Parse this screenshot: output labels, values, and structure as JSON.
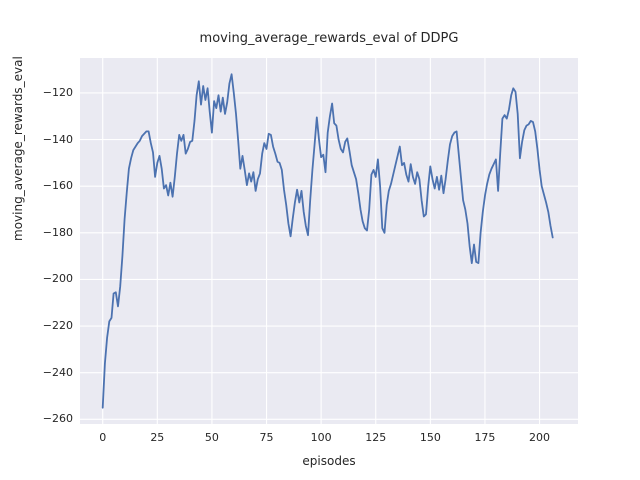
{
  "chart_data": {
    "type": "line",
    "title": "moving_average_rewards_eval of DDPG",
    "xlabel": "episodes",
    "ylabel": "moving_average_rewards_eval",
    "xlim": [
      -10.4,
      217.6
    ],
    "ylim": [
      -262,
      -105
    ],
    "grid": true,
    "legend": "none",
    "plot_bg_color": "#eaeaf2",
    "grid_color": "#ffffff",
    "line_color": "#4c72b0",
    "text_color": "#262626",
    "xticks": [
      {
        "label": "0",
        "value": 0
      },
      {
        "label": "25",
        "value": 25
      },
      {
        "label": "50",
        "value": 50
      },
      {
        "label": "75",
        "value": 75
      },
      {
        "label": "100",
        "value": 100
      },
      {
        "label": "125",
        "value": 125
      },
      {
        "label": "150",
        "value": 150
      },
      {
        "label": "175",
        "value": 175
      },
      {
        "label": "200",
        "value": 200
      }
    ],
    "yticks": [
      {
        "label": "−120",
        "value": -120
      },
      {
        "label": "−140",
        "value": -140
      },
      {
        "label": "−160",
        "value": -160
      },
      {
        "label": "−180",
        "value": -180
      },
      {
        "label": "−200",
        "value": -200
      },
      {
        "label": "−220",
        "value": -220
      },
      {
        "label": "−240",
        "value": -240
      },
      {
        "label": "−260",
        "value": -260
      }
    ],
    "series": [
      {
        "name": "moving_average_rewards_eval",
        "points": [
          [
            0,
            -255
          ],
          [
            1,
            -236
          ],
          [
            2,
            -225
          ],
          [
            3,
            -218
          ],
          [
            4,
            -216.5
          ],
          [
            5,
            -206
          ],
          [
            6,
            -205.5
          ],
          [
            7,
            -211.5
          ],
          [
            8,
            -203
          ],
          [
            9,
            -190
          ],
          [
            10,
            -174
          ],
          [
            11,
            -163
          ],
          [
            12,
            -152.5
          ],
          [
            13,
            -148
          ],
          [
            14,
            -144.5
          ],
          [
            15,
            -143
          ],
          [
            16,
            -141.5
          ],
          [
            17,
            -140.5
          ],
          [
            18,
            -138.5
          ],
          [
            19,
            -137.5
          ],
          [
            20,
            -136.5
          ],
          [
            21,
            -136.5
          ],
          [
            22,
            -141.5
          ],
          [
            23,
            -145.5
          ],
          [
            24,
            -156
          ],
          [
            25,
            -150
          ],
          [
            26,
            -147
          ],
          [
            27,
            -152.5
          ],
          [
            28,
            -161
          ],
          [
            29,
            -159.5
          ],
          [
            30,
            -164
          ],
          [
            31,
            -158.5
          ],
          [
            32,
            -164.5
          ],
          [
            33,
            -156
          ],
          [
            34,
            -146
          ],
          [
            35,
            -138
          ],
          [
            36,
            -140.5
          ],
          [
            37,
            -138
          ],
          [
            38,
            -146
          ],
          [
            39,
            -144
          ],
          [
            40,
            -141
          ],
          [
            41,
            -140.5
          ],
          [
            42,
            -132
          ],
          [
            43,
            -121
          ],
          [
            44,
            -115
          ],
          [
            45,
            -125
          ],
          [
            46,
            -117
          ],
          [
            47,
            -123
          ],
          [
            48,
            -118
          ],
          [
            49,
            -128
          ],
          [
            50,
            -137
          ],
          [
            51,
            -123.5
          ],
          [
            52,
            -126.5
          ],
          [
            53,
            -121
          ],
          [
            54,
            -128
          ],
          [
            55,
            -122
          ],
          [
            56,
            -129
          ],
          [
            57,
            -124
          ],
          [
            58,
            -116
          ],
          [
            59,
            -112
          ],
          [
            60,
            -120
          ],
          [
            61,
            -129
          ],
          [
            62,
            -140
          ],
          [
            63,
            -152.5
          ],
          [
            64,
            -147
          ],
          [
            65,
            -153
          ],
          [
            66,
            -159.5
          ],
          [
            67,
            -154.5
          ],
          [
            68,
            -158
          ],
          [
            69,
            -154
          ],
          [
            70,
            -162
          ],
          [
            71,
            -157
          ],
          [
            72,
            -154.5
          ],
          [
            73,
            -146
          ],
          [
            74,
            -141.5
          ],
          [
            75,
            -144
          ],
          [
            76,
            -137.5
          ],
          [
            77,
            -138
          ],
          [
            78,
            -143
          ],
          [
            79,
            -146
          ],
          [
            80,
            -149.5
          ],
          [
            81,
            -150
          ],
          [
            82,
            -153
          ],
          [
            83,
            -161.5
          ],
          [
            84,
            -168
          ],
          [
            85,
            -176
          ],
          [
            86,
            -181.5
          ],
          [
            87,
            -174
          ],
          [
            88,
            -167
          ],
          [
            89,
            -161.5
          ],
          [
            90,
            -167
          ],
          [
            91,
            -162
          ],
          [
            92,
            -171
          ],
          [
            93,
            -177
          ],
          [
            94,
            -181
          ],
          [
            95,
            -166
          ],
          [
            96,
            -153
          ],
          [
            97,
            -142
          ],
          [
            98,
            -130.5
          ],
          [
            99,
            -140
          ],
          [
            100,
            -147.5
          ],
          [
            101,
            -146.5
          ],
          [
            102,
            -154
          ],
          [
            103,
            -137
          ],
          [
            104,
            -130
          ],
          [
            105,
            -124.5
          ],
          [
            106,
            -133
          ],
          [
            107,
            -134
          ],
          [
            108,
            -140
          ],
          [
            109,
            -144
          ],
          [
            110,
            -145.5
          ],
          [
            111,
            -141
          ],
          [
            112,
            -139.5
          ],
          [
            113,
            -145
          ],
          [
            114,
            -151
          ],
          [
            115,
            -154
          ],
          [
            116,
            -157
          ],
          [
            117,
            -163
          ],
          [
            118,
            -170
          ],
          [
            119,
            -175
          ],
          [
            120,
            -178
          ],
          [
            121,
            -179
          ],
          [
            122,
            -170
          ],
          [
            123,
            -155
          ],
          [
            124,
            -153
          ],
          [
            125,
            -156
          ],
          [
            126,
            -148.5
          ],
          [
            127,
            -160
          ],
          [
            128,
            -178
          ],
          [
            129,
            -180
          ],
          [
            130,
            -168
          ],
          [
            131,
            -162
          ],
          [
            132,
            -159
          ],
          [
            133,
            -155
          ],
          [
            134,
            -151
          ],
          [
            135,
            -147
          ],
          [
            136,
            -143
          ],
          [
            137,
            -151
          ],
          [
            138,
            -150
          ],
          [
            139,
            -155
          ],
          [
            140,
            -158
          ],
          [
            141,
            -150.5
          ],
          [
            142,
            -156
          ],
          [
            143,
            -159
          ],
          [
            144,
            -154
          ],
          [
            145,
            -157
          ],
          [
            146,
            -166
          ],
          [
            147,
            -173
          ],
          [
            148,
            -172
          ],
          [
            149,
            -160
          ],
          [
            150,
            -151.5
          ],
          [
            151,
            -157
          ],
          [
            152,
            -161
          ],
          [
            153,
            -156
          ],
          [
            154,
            -161.5
          ],
          [
            155,
            -155.5
          ],
          [
            156,
            -163
          ],
          [
            157,
            -157
          ],
          [
            158,
            -149
          ],
          [
            159,
            -142
          ],
          [
            160,
            -138.5
          ],
          [
            161,
            -137
          ],
          [
            162,
            -136.5
          ],
          [
            163,
            -146
          ],
          [
            164,
            -156
          ],
          [
            165,
            -166
          ],
          [
            166,
            -170
          ],
          [
            167,
            -176
          ],
          [
            168,
            -186
          ],
          [
            169,
            -193
          ],
          [
            170,
            -185
          ],
          [
            171,
            -192.5
          ],
          [
            172,
            -193
          ],
          [
            173,
            -180
          ],
          [
            174,
            -171
          ],
          [
            175,
            -164
          ],
          [
            176,
            -159
          ],
          [
            177,
            -155
          ],
          [
            178,
            -152.5
          ],
          [
            179,
            -150.5
          ],
          [
            180,
            -148.5
          ],
          [
            181,
            -162
          ],
          [
            182,
            -146
          ],
          [
            183,
            -131
          ],
          [
            184,
            -129.5
          ],
          [
            185,
            -131
          ],
          [
            186,
            -127
          ],
          [
            187,
            -121
          ],
          [
            188,
            -118
          ],
          [
            189,
            -119.5
          ],
          [
            190,
            -129
          ],
          [
            191,
            -148
          ],
          [
            192,
            -141
          ],
          [
            193,
            -136
          ],
          [
            194,
            -134
          ],
          [
            195,
            -133.5
          ],
          [
            196,
            -132
          ],
          [
            197,
            -132.5
          ],
          [
            198,
            -136.5
          ],
          [
            199,
            -144
          ],
          [
            200,
            -153
          ],
          [
            201,
            -160
          ],
          [
            202,
            -163.5
          ],
          [
            203,
            -167
          ],
          [
            204,
            -171
          ],
          [
            205,
            -177
          ],
          [
            206,
            -182
          ]
        ]
      }
    ]
  }
}
